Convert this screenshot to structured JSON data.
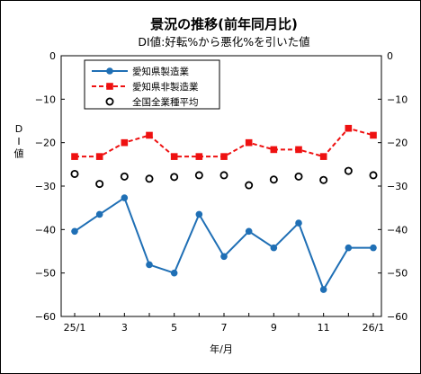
{
  "chart_data": {
    "type": "line",
    "title": "景況の推移(前年同月比)",
    "subtitle": "DI値:好転%から悪化%を引いた値",
    "xlabel": "年/月",
    "ylabel": "DI値",
    "ylim": [
      -60,
      0
    ],
    "yticks": [
      0,
      -10,
      -20,
      -30,
      -40,
      -50,
      -60
    ],
    "grid": false,
    "legend_position": "top-left",
    "x": [
      "25/1",
      "2",
      "3",
      "4",
      "5",
      "6",
      "7",
      "8",
      "9",
      "10",
      "11",
      "12",
      "26/1"
    ],
    "x_tick_labels": [
      "25/1",
      "",
      "3",
      "",
      "5",
      "",
      "7",
      "",
      "9",
      "",
      "11",
      "",
      "26/1"
    ],
    "series": [
      {
        "name": "愛知県製造業",
        "color": "#1f6fb5",
        "marker": "circle",
        "line_style": "solid",
        "values": [
          -40.4,
          -36.5,
          -32.7,
          -48.1,
          -50.0,
          -36.5,
          -46.2,
          -40.4,
          -44.2,
          -38.5,
          -53.8,
          -44.2,
          -44.2
        ]
      },
      {
        "name": "愛知県非製造業",
        "color": "#ee1111",
        "marker": "square",
        "line_style": "dashed",
        "values": [
          -23.2,
          -23.2,
          -20.0,
          -18.3,
          -23.2,
          -23.2,
          -23.2,
          -20.0,
          -21.6,
          -21.6,
          -23.2,
          -16.7,
          -18.3
        ]
      },
      {
        "name": "全国全業種平均",
        "color": "#000000",
        "marker": "open-circle",
        "line_style": "none",
        "values": [
          -27.2,
          -29.5,
          -27.8,
          -28.3,
          -27.9,
          -27.5,
          -27.5,
          -29.8,
          -28.5,
          -27.8,
          -28.6,
          -26.5,
          -27.5
        ]
      }
    ]
  }
}
